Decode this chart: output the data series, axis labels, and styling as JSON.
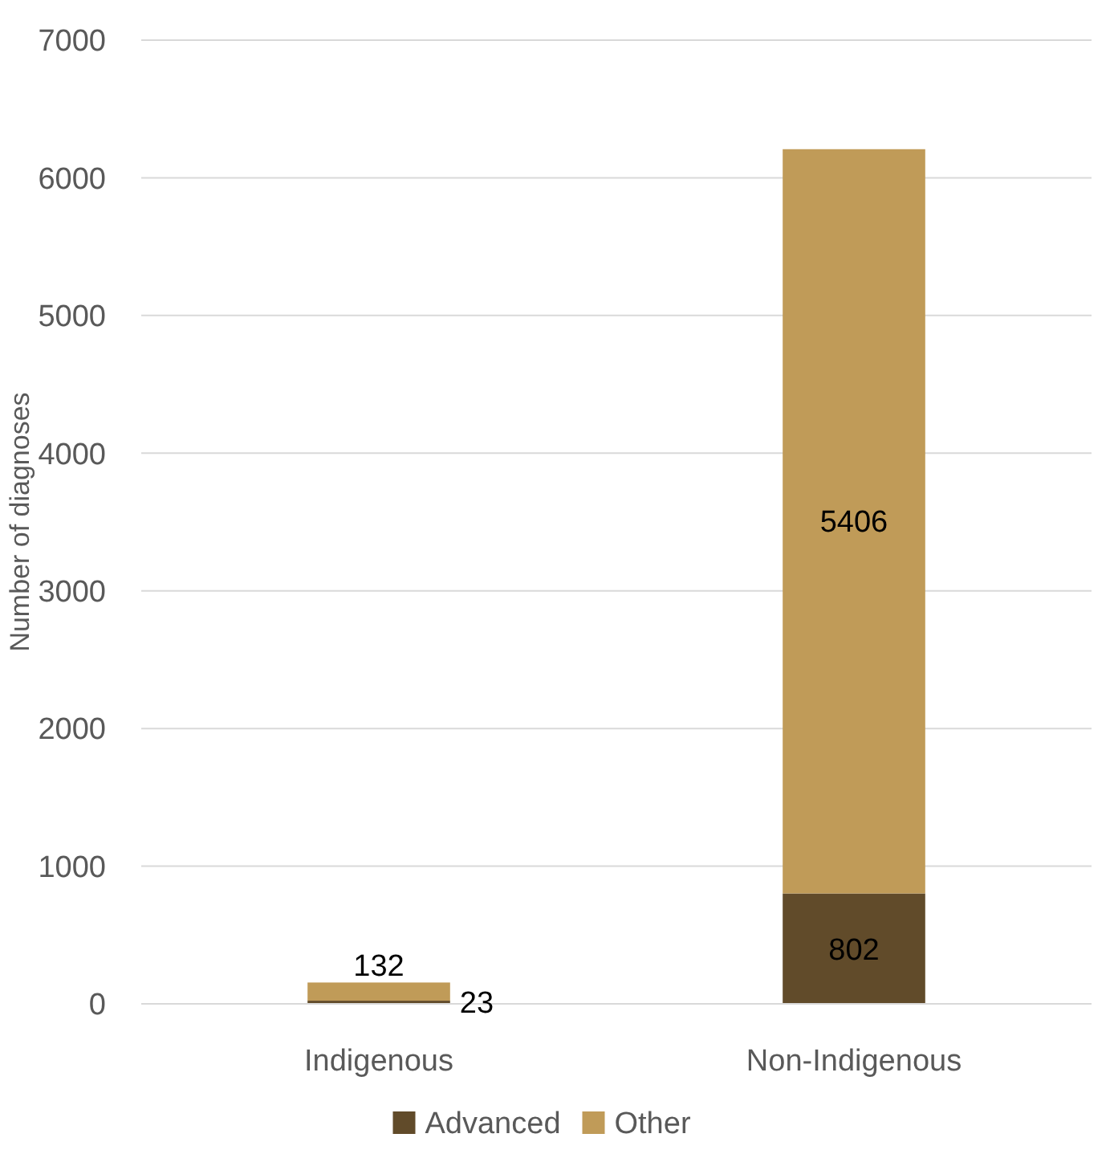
{
  "chart_data": {
    "type": "bar",
    "stacked": true,
    "categories": [
      "Indigenous",
      "Non-Indigenous"
    ],
    "series": [
      {
        "name": "Advanced",
        "color": "#614b2a",
        "values": [
          23,
          802
        ]
      },
      {
        "name": "Other",
        "color": "#c09b58",
        "values": [
          132,
          5406
        ]
      }
    ],
    "ylabel": "Number of diagnoses",
    "ylim": [
      0,
      7000
    ],
    "yticks": [
      0,
      1000,
      2000,
      3000,
      4000,
      5000,
      6000,
      7000
    ],
    "grid": "y",
    "legend": "bottom",
    "data_labels": true
  }
}
